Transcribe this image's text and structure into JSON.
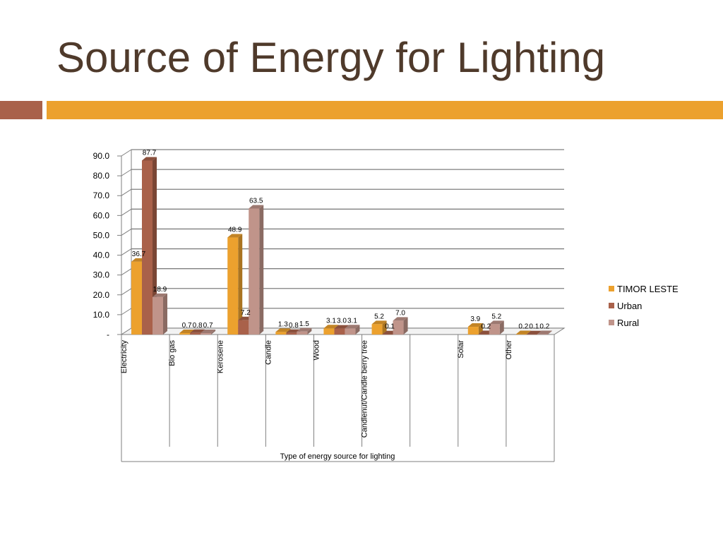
{
  "slide": {
    "title": "Source of Energy for Lighting",
    "colors": {
      "title": "#4f3a2b",
      "accent_square": "#a9614a",
      "accent_bar": "#eca12e"
    }
  },
  "chart_data": {
    "type": "bar",
    "xlabel": "Type of energy source for lighting",
    "ylabel": "",
    "ylim": [
      0,
      90
    ],
    "yticks": [
      "-",
      "10.0",
      "20.0",
      "30.0",
      "40.0",
      "50.0",
      "60.0",
      "70.0",
      "80.0",
      "90.0"
    ],
    "grid": true,
    "legend_position": "right",
    "categories": [
      "Electricity",
      "Bio gas",
      "Kerosene",
      "Candle",
      "Wood",
      "Candlenut/Candle berry tree",
      "",
      "Solar",
      "Other"
    ],
    "series": [
      {
        "name": "TIMOR LESTE",
        "color": "#eca12e",
        "values": [
          36.7,
          0.7,
          48.9,
          1.3,
          3.1,
          5.2,
          null,
          3.9,
          0.2
        ],
        "labels": [
          "36.7",
          "0.7",
          "48.9",
          "1.3",
          "3.1",
          "5.2",
          "",
          "3.9",
          "0.2"
        ]
      },
      {
        "name": "Urban",
        "color": "#a9614a",
        "values": [
          87.7,
          0.8,
          7.2,
          0.8,
          3.0,
          0.1,
          null,
          0.2,
          0.1
        ],
        "labels": [
          "87.7",
          "0.8",
          "7.2",
          "0.8",
          "3.0",
          "0.1",
          "",
          "0.2",
          "0.1"
        ]
      },
      {
        "name": "Rural",
        "color": "#c0948a",
        "values": [
          18.9,
          0.7,
          63.5,
          1.5,
          3.1,
          7.0,
          null,
          5.2,
          0.2
        ],
        "labels": [
          "18.9",
          "0.7",
          "63.5",
          "1.5",
          "3.1",
          "7.0",
          "",
          "5.2",
          "0.2"
        ]
      }
    ]
  }
}
